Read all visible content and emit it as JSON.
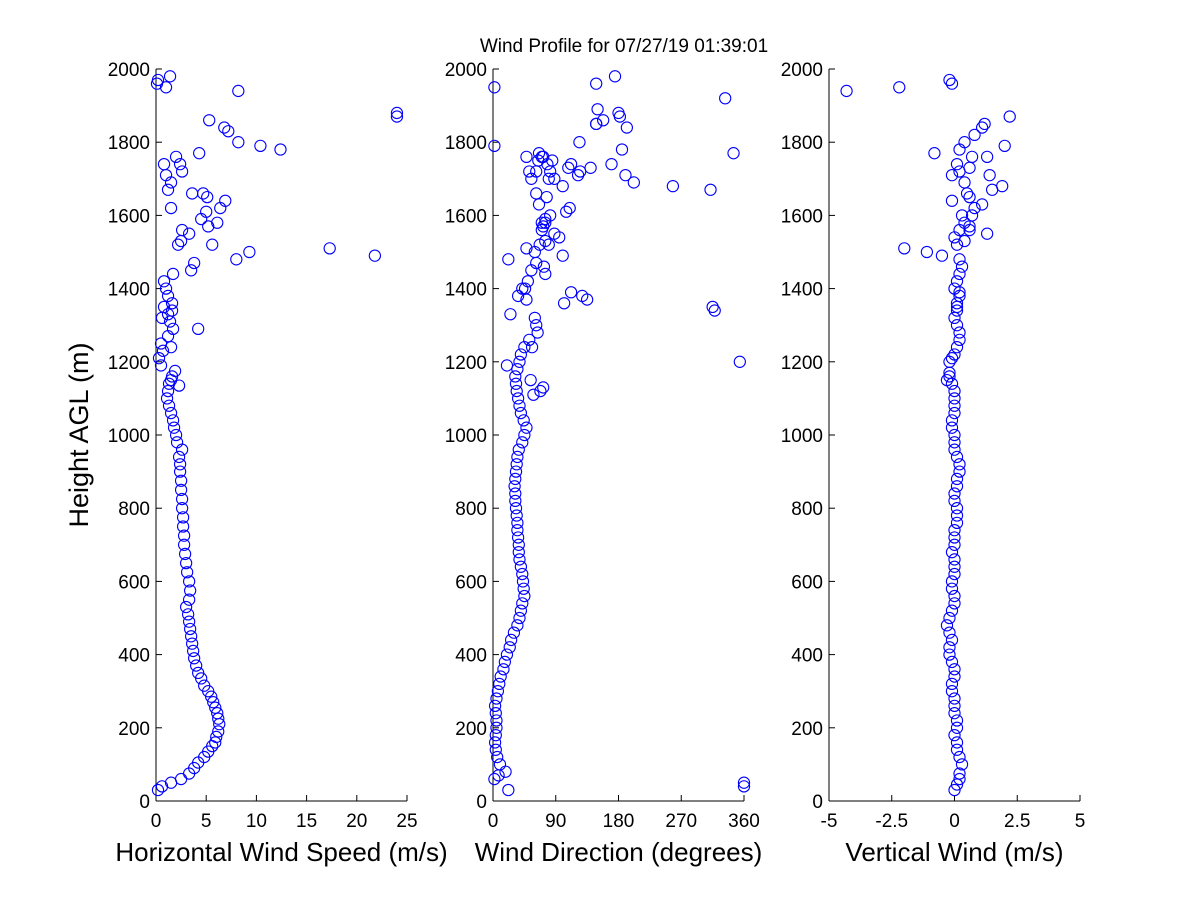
{
  "figure": {
    "title": "Wind Profile for  07/27/19 01:39:01",
    "ylabel": "Height AGL (m)",
    "marker_color": "#0000ff"
  },
  "chart_data": [
    {
      "type": "scatter",
      "title": "Wind Profile for  07/27/19 01:39:01",
      "xlabel": "Horizontal Wind Speed (m/s)",
      "ylabel": "Height AGL (m)",
      "xlim": [
        0,
        25
      ],
      "ylim": [
        0,
        2000
      ],
      "xticks": [
        0,
        5,
        10,
        15,
        20,
        25
      ],
      "xtick_labels": [
        "0",
        "5",
        "10",
        "15",
        "20",
        "25"
      ],
      "yticks": [
        0,
        200,
        400,
        600,
        800,
        1000,
        1200,
        1400,
        1600,
        1800,
        2000
      ],
      "ytick_labels": [
        "0",
        "200",
        "400",
        "600",
        "800",
        "1000",
        "1200",
        "1400",
        "1600",
        "1800",
        "2000"
      ],
      "grid": false,
      "marker": "open-circle",
      "series": [
        {
          "x": [
            0.2,
            0.6,
            1.5,
            2.5,
            3.3,
            3.8,
            4.2,
            4.8,
            5.2,
            5.6,
            5.9,
            6.0,
            6.2,
            6.3,
            6.2,
            6.1,
            5.9,
            5.7,
            5.5,
            5.2,
            4.8,
            4.5,
            4.2,
            4.0,
            3.8,
            3.7,
            3.6,
            3.5,
            3.4,
            3.3,
            3.2,
            3.0,
            3.3,
            3.4,
            3.3,
            3.1,
            3.0,
            2.9,
            2.8,
            2.8,
            2.7,
            2.7,
            2.6,
            2.6,
            2.5,
            2.5,
            2.4,
            2.4,
            2.3,
            2.6,
            2.1,
            2.0,
            1.8,
            1.7,
            1.5,
            1.3,
            1.1,
            1.2,
            1.3,
            1.5,
            1.6,
            1.9,
            2.3,
            0.5,
            0.3,
            0.7,
            1.5,
            0.5,
            1.2,
            1.7,
            1.4,
            0.6,
            1.2,
            1.6,
            0.8,
            1.6,
            1.2,
            4.2,
            1.0,
            0.8,
            1.7,
            3.5,
            3.8,
            8.0,
            9.3,
            17.3,
            21.8,
            2.2,
            2.5,
            3.3,
            2.6,
            5.6,
            5.2,
            6.1,
            4.5,
            5.0,
            6.4,
            6.9,
            1.5,
            4.7,
            5.1,
            3.6,
            1.2,
            1.5,
            1.0,
            2.6,
            0.8,
            2.0,
            2.4,
            4.3,
            8.2,
            10.4,
            12.4,
            7.2,
            6.8,
            5.3,
            24.0,
            24.0,
            8.2,
            0.2,
            1.0,
            1.4,
            0.1
          ],
          "y": [
            30,
            40,
            50,
            60,
            75,
            90,
            105,
            120,
            135,
            150,
            160,
            175,
            190,
            210,
            225,
            240,
            255,
            270,
            285,
            300,
            315,
            335,
            350,
            370,
            390,
            410,
            430,
            450,
            470,
            490,
            510,
            530,
            550,
            575,
            600,
            625,
            650,
            675,
            700,
            725,
            750,
            775,
            800,
            825,
            850,
            875,
            900,
            920,
            940,
            960,
            980,
            1000,
            1020,
            1040,
            1060,
            1080,
            1100,
            1120,
            1140,
            1150,
            1160,
            1175,
            1135,
            1190,
            1210,
            1230,
            1240,
            1250,
            1270,
            1290,
            1310,
            1320,
            1330,
            1340,
            1350,
            1360,
            1380,
            1290,
            1400,
            1420,
            1440,
            1450,
            1470,
            1480,
            1500,
            1510,
            1490,
            1520,
            1530,
            1550,
            1560,
            1520,
            1570,
            1580,
            1590,
            1610,
            1620,
            1640,
            1620,
            1660,
            1650,
            1660,
            1670,
            1690,
            1710,
            1720,
            1740,
            1760,
            1740,
            1770,
            1800,
            1790,
            1780,
            1830,
            1840,
            1860,
            1870,
            1880,
            1940,
            1970,
            1950,
            1980,
            1960
          ]
        }
      ]
    },
    {
      "type": "scatter",
      "xlabel": "Wind Direction (degrees)",
      "xlim": [
        0,
        360
      ],
      "ylim": [
        0,
        2000
      ],
      "xticks": [
        0,
        90,
        180,
        270,
        360
      ],
      "xtick_labels": [
        "0",
        "90",
        "180",
        "270",
        "360"
      ],
      "yticks": [
        0,
        200,
        400,
        600,
        800,
        1000,
        1200,
        1400,
        1600,
        1800,
        2000
      ],
      "ytick_labels": [
        "0",
        "200",
        "400",
        "600",
        "800",
        "1000",
        "1200",
        "1400",
        "1600",
        "1800",
        "2000"
      ],
      "grid": false,
      "marker": "open-circle",
      "series": [
        {
          "x": [
            22,
            2,
            8,
            18,
            10,
            6,
            4,
            3,
            4,
            5,
            5,
            4,
            3,
            5,
            7,
            9,
            11,
            15,
            17,
            20,
            24,
            26,
            30,
            35,
            38,
            40,
            42,
            45,
            44,
            43,
            42,
            40,
            38,
            37,
            37,
            36,
            35,
            35,
            34,
            33,
            32,
            32,
            31,
            32,
            33,
            34,
            35,
            37,
            42,
            45,
            48,
            44,
            40,
            38,
            36,
            34,
            33,
            32,
            35,
            38,
            40,
            45,
            52,
            64,
            62,
            60,
            56,
            54,
            58,
            68,
            72,
            75,
            73,
            62,
            55,
            50,
            46,
            42,
            36,
            25,
            22,
            48,
            60,
            20,
            112,
            128,
            135,
            315,
            318,
            102,
            2,
            70,
            75,
            82,
            88,
            95,
            105,
            110,
            100,
            62,
            66,
            70,
            72,
            75,
            77,
            80,
            75,
            67,
            48,
            52,
            55,
            62,
            88,
            100,
            122,
            108,
            112,
            78,
            85,
            80,
            82,
            70,
            66,
            72,
            65,
            48,
            124,
            170,
            190,
            140,
            202,
            258,
            312,
            125,
            148,
            158,
            2,
            148,
            150,
            182,
            180,
            192,
            148,
            175,
            185,
            345,
            333,
            354,
            360,
            360
          ],
          "y": [
            30,
            60,
            70,
            80,
            100,
            120,
            140,
            160,
            180,
            200,
            220,
            240,
            260,
            280,
            300,
            320,
            340,
            360,
            380,
            400,
            420,
            440,
            460,
            480,
            500,
            520,
            540,
            560,
            580,
            600,
            620,
            640,
            660,
            680,
            700,
            720,
            740,
            760,
            780,
            800,
            820,
            840,
            860,
            880,
            900,
            920,
            940,
            960,
            980,
            1000,
            1020,
            1040,
            1060,
            1080,
            1100,
            1120,
            1140,
            1160,
            1180,
            1200,
            1220,
            1240,
            1260,
            1280,
            1300,
            1320,
            1240,
            1150,
            1110,
            1120,
            1130,
            1440,
            1460,
            1470,
            1450,
            1420,
            1400,
            1400,
            1380,
            1330,
            1480,
            1510,
            1500,
            1190,
            1390,
            1380,
            1370,
            1350,
            1340,
            1360,
            1790,
            1560,
            1580,
            1600,
            1550,
            1540,
            1610,
            1620,
            1490,
            1660,
            1630,
            1580,
            1570,
            1590,
            1650,
            1520,
            1530,
            1520,
            1760,
            1720,
            1700,
            1720,
            1700,
            1680,
            1710,
            1730,
            1740,
            1740,
            1750,
            1700,
            1720,
            1760,
            1770,
            1760,
            1750,
            1370,
            1800,
            1740,
            1710,
            1730,
            1690,
            1680,
            1670,
            1720,
            1850,
            1860,
            1950,
            1850,
            1890,
            1870,
            1880,
            1840,
            1960,
            1980,
            1780,
            1770,
            1920,
            1200,
            40,
            50
          ]
        }
      ]
    },
    {
      "type": "scatter",
      "xlabel": "Vertical Wind (m/s)",
      "xlim": [
        -5,
        5
      ],
      "ylim": [
        0,
        2000
      ],
      "xticks": [
        -5,
        -2.5,
        0,
        2.5,
        5
      ],
      "xtick_labels": [
        "-5",
        "-2.5",
        "0",
        "2.5",
        "5"
      ],
      "yticks": [
        0,
        200,
        400,
        600,
        800,
        1000,
        1200,
        1400,
        1600,
        1800,
        2000
      ],
      "ytick_labels": [
        "0",
        "200",
        "400",
        "600",
        "800",
        "1000",
        "1200",
        "1400",
        "1600",
        "1800",
        "2000"
      ],
      "grid": false,
      "marker": "open-circle",
      "series": [
        {
          "x": [
            0.0,
            0.1,
            0.2,
            0.2,
            0.3,
            0.2,
            0.1,
            0.1,
            0.0,
            0.1,
            0.1,
            0.0,
            0.0,
            0.0,
            -0.1,
            -0.1,
            0.0,
            0.0,
            -0.1,
            -0.2,
            -0.2,
            -0.1,
            -0.2,
            -0.3,
            -0.2,
            -0.1,
            0.0,
            0.0,
            -0.1,
            -0.1,
            0.0,
            0.0,
            0.0,
            -0.1,
            0.0,
            0.0,
            0.0,
            0.1,
            0.1,
            0.1,
            0.0,
            0.0,
            0.1,
            0.1,
            0.2,
            0.2,
            0.1,
            0.0,
            0.0,
            0.0,
            -0.1,
            -0.1,
            0.0,
            0.0,
            0.0,
            0.0,
            -0.1,
            -0.2,
            -0.2,
            -0.3,
            -0.2,
            -0.1,
            0.0,
            0.1,
            0.2,
            0.2,
            0.1,
            0.0,
            0.1,
            0.1,
            0.2,
            0.2,
            0.1,
            0.0,
            0.1,
            0.2,
            0.3,
            0.2,
            0.1,
            0.0,
            0.2,
            0.4,
            0.3,
            -0.1,
            -0.5,
            -1.1,
            -2.0,
            0.6,
            0.6,
            0.4,
            1.3,
            1.1,
            0.6,
            0.5,
            1.5,
            0.8,
            0.7,
            0.4,
            1.4,
            0.6,
            1.9,
            0.2,
            -0.8,
            0.2,
            0.4,
            0.7,
            0.1,
            -0.1,
            1.1,
            1.2,
            2.0,
            0.8,
            1.3,
            2.2,
            -2.2,
            -0.2,
            -0.1,
            -4.3
          ],
          "y": [
            30,
            45,
            60,
            75,
            100,
            120,
            140,
            160,
            180,
            200,
            220,
            240,
            260,
            280,
            300,
            320,
            340,
            360,
            380,
            400,
            420,
            440,
            460,
            480,
            500,
            520,
            540,
            560,
            580,
            600,
            620,
            640,
            660,
            680,
            700,
            720,
            740,
            760,
            780,
            800,
            820,
            840,
            860,
            880,
            900,
            920,
            940,
            960,
            980,
            1000,
            1020,
            1040,
            1060,
            1080,
            1100,
            1120,
            1140,
            1160,
            1170,
            1150,
            1200,
            1210,
            1220,
            1240,
            1260,
            1280,
            1300,
            1320,
            1340,
            1360,
            1380,
            1390,
            1350,
            1400,
            1420,
            1440,
            1460,
            1480,
            1520,
            1540,
            1560,
            1580,
            1600,
            1640,
            1490,
            1500,
            1510,
            1560,
            1570,
            1530,
            1550,
            1630,
            1650,
            1660,
            1670,
            1620,
            1600,
            1690,
            1710,
            1730,
            1680,
            1720,
            1770,
            1780,
            1800,
            1760,
            1740,
            1710,
            1840,
            1850,
            1790,
            1820,
            1760,
            1870,
            1950,
            1970,
            1960,
            1940
          ]
        }
      ]
    }
  ]
}
